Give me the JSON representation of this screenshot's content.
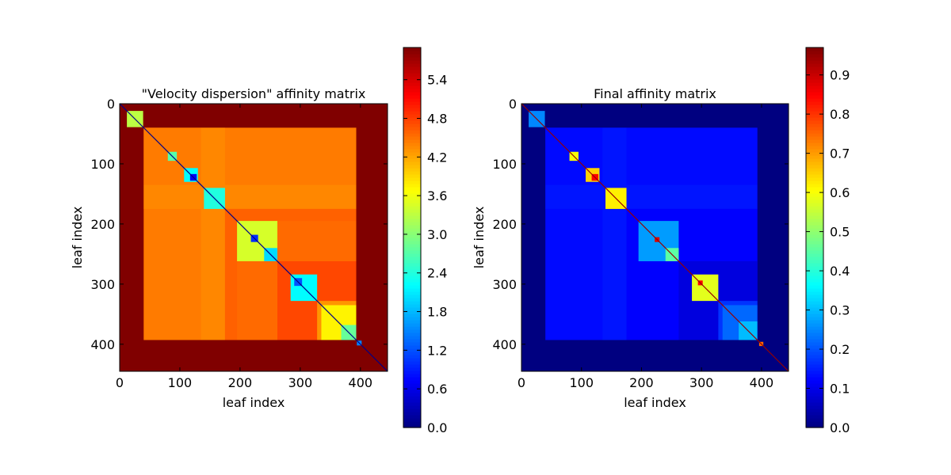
{
  "chart_data": [
    {
      "type": "heatmap",
      "title": "\"Velocity dispersion\" affinity matrix",
      "xlabel": "leaf index",
      "ylabel": "leaf index",
      "n": 445,
      "xlim": [
        0,
        445
      ],
      "ylim": [
        445,
        0
      ],
      "xticks": [
        0,
        100,
        200,
        300,
        400
      ],
      "yticks": [
        0,
        100,
        200,
        300,
        400
      ],
      "colormap": "jet",
      "colorbar": {
        "min": 0.0,
        "max": 5.9,
        "ticks": [
          "0.0",
          "0.6",
          "1.2",
          "1.8",
          "2.4",
          "3.0",
          "3.6",
          "4.2",
          "4.8",
          "5.4"
        ]
      },
      "background_value": 5.9,
      "diagonal_value": 0.05,
      "rects": [
        {
          "r": [
            40,
            393
          ],
          "c": [
            40,
            393
          ],
          "v": 4.55
        },
        {
          "r": [
            40,
            393
          ],
          "c": [
            40,
            135
          ],
          "v": 4.45
        },
        {
          "r": [
            40,
            135
          ],
          "c": [
            40,
            393
          ],
          "v": 4.45
        },
        {
          "r": [
            40,
            393
          ],
          "c": [
            135,
            175
          ],
          "v": 4.38
        },
        {
          "r": [
            135,
            175
          ],
          "c": [
            40,
            393
          ],
          "v": 4.38
        },
        {
          "r": [
            175,
            393
          ],
          "c": [
            175,
            393
          ],
          "v": 4.6
        },
        {
          "r": [
            195,
            393
          ],
          "c": [
            195,
            393
          ],
          "v": 4.55
        },
        {
          "r": [
            262,
            393
          ],
          "c": [
            262,
            393
          ],
          "v": 4.75
        },
        {
          "r": [
            328,
            393
          ],
          "c": [
            328,
            393
          ],
          "v": 4.3
        },
        {
          "r": [
            12,
            39
          ],
          "c": [
            12,
            39
          ],
          "v": 3.3
        },
        {
          "r": [
            80,
            95
          ],
          "c": [
            80,
            95
          ],
          "v": 2.7
        },
        {
          "r": [
            107,
            130
          ],
          "c": [
            107,
            130
          ],
          "v": 2.2
        },
        {
          "r": [
            140,
            175
          ],
          "c": [
            140,
            175
          ],
          "v": 2.4
        },
        {
          "r": [
            195,
            262
          ],
          "c": [
            195,
            262
          ],
          "v": 3.45
        },
        {
          "r": [
            284,
            328
          ],
          "c": [
            284,
            328
          ],
          "v": 2.2
        },
        {
          "r": [
            335,
            393
          ],
          "c": [
            335,
            393
          ],
          "v": 3.75
        },
        {
          "r": [
            117,
            128
          ],
          "c": [
            117,
            128
          ],
          "v": 0.7
        },
        {
          "r": [
            218,
            230
          ],
          "c": [
            218,
            230
          ],
          "v": 1.0
        },
        {
          "r": [
            240,
            262
          ],
          "c": [
            240,
            262
          ],
          "v": 2.0
        },
        {
          "r": [
            290,
            303
          ],
          "c": [
            290,
            303
          ],
          "v": 1.2
        },
        {
          "r": [
            368,
            393
          ],
          "c": [
            368,
            393
          ],
          "v": 2.8
        },
        {
          "r": [
            394,
            402
          ],
          "c": [
            394,
            402
          ],
          "v": 1.5
        }
      ]
    },
    {
      "type": "heatmap",
      "title": "Final affinity matrix",
      "xlabel": "leaf index",
      "ylabel": "leaf index",
      "n": 445,
      "xlim": [
        0,
        445
      ],
      "ylim": [
        445,
        0
      ],
      "xticks": [
        0,
        100,
        200,
        300,
        400
      ],
      "yticks": [
        0,
        100,
        200,
        300,
        400
      ],
      "colormap": "jet",
      "colorbar": {
        "min": 0.0,
        "max": 0.97,
        "ticks": [
          "0.0",
          "0.1",
          "0.2",
          "0.3",
          "0.4",
          "0.5",
          "0.6",
          "0.7",
          "0.8",
          "0.9"
        ]
      },
      "background_value": 0.0,
      "diagonal_value": 0.95,
      "rects": [
        {
          "r": [
            40,
            393
          ],
          "c": [
            40,
            393
          ],
          "v": 0.12
        },
        {
          "r": [
            40,
            393
          ],
          "c": [
            40,
            135
          ],
          "v": 0.13
        },
        {
          "r": [
            40,
            135
          ],
          "c": [
            40,
            393
          ],
          "v": 0.13
        },
        {
          "r": [
            40,
            393
          ],
          "c": [
            135,
            175
          ],
          "v": 0.14
        },
        {
          "r": [
            135,
            175
          ],
          "c": [
            40,
            393
          ],
          "v": 0.14
        },
        {
          "r": [
            175,
            393
          ],
          "c": [
            175,
            393
          ],
          "v": 0.12
        },
        {
          "r": [
            262,
            393
          ],
          "c": [
            262,
            393
          ],
          "v": 0.09
        },
        {
          "r": [
            328,
            393
          ],
          "c": [
            328,
            393
          ],
          "v": 0.17
        },
        {
          "r": [
            12,
            39
          ],
          "c": [
            12,
            39
          ],
          "v": 0.25
        },
        {
          "r": [
            80,
            95
          ],
          "c": [
            80,
            95
          ],
          "v": 0.6
        },
        {
          "r": [
            107,
            130
          ],
          "c": [
            107,
            130
          ],
          "v": 0.65
        },
        {
          "r": [
            140,
            175
          ],
          "c": [
            140,
            175
          ],
          "v": 0.62
        },
        {
          "r": [
            195,
            262
          ],
          "c": [
            195,
            262
          ],
          "v": 0.27
        },
        {
          "r": [
            284,
            328
          ],
          "c": [
            284,
            328
          ],
          "v": 0.58
        },
        {
          "r": [
            335,
            393
          ],
          "c": [
            335,
            393
          ],
          "v": 0.22
        },
        {
          "r": [
            117,
            128
          ],
          "c": [
            117,
            128
          ],
          "v": 0.85
        },
        {
          "r": [
            222,
            230
          ],
          "c": [
            222,
            230
          ],
          "v": 0.88
        },
        {
          "r": [
            240,
            262
          ],
          "c": [
            240,
            262
          ],
          "v": 0.45
        },
        {
          "r": [
            294,
            302
          ],
          "c": [
            294,
            302
          ],
          "v": 0.85
        },
        {
          "r": [
            362,
            393
          ],
          "c": [
            362,
            393
          ],
          "v": 0.3
        },
        {
          "r": [
            396,
            403
          ],
          "c": [
            396,
            403
          ],
          "v": 0.75
        }
      ]
    }
  ]
}
